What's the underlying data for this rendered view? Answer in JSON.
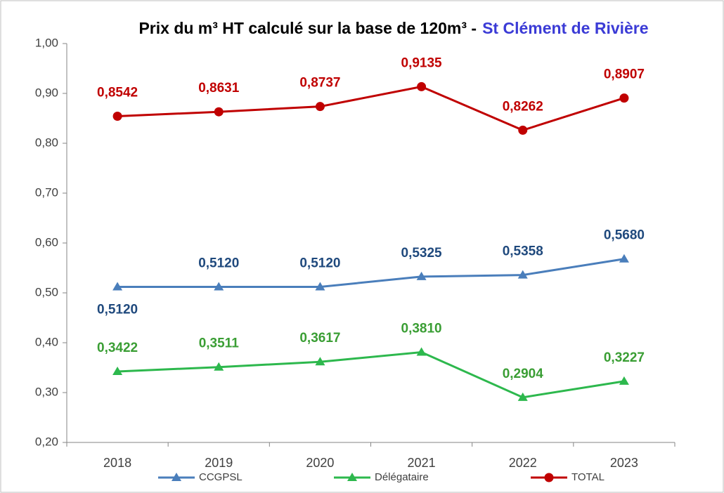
{
  "chart_data": {
    "type": "line",
    "title": "Prix du m³ HT calculé sur la base de 120m³ -",
    "title_highlight": "St Clément de Rivière",
    "categories": [
      "2018",
      "2019",
      "2020",
      "2021",
      "2022",
      "2023"
    ],
    "series": [
      {
        "name": "CCGPSL",
        "color": "#4a7ebb",
        "label_color": "#1f497d",
        "marker": "triangle",
        "values": [
          0.512,
          0.512,
          0.512,
          0.5325,
          0.5358,
          0.568
        ],
        "value_labels": [
          "0,5120",
          "0,5120",
          "0,5120",
          "0,5325",
          "0,5358",
          "0,5680"
        ]
      },
      {
        "name": "Délégataire",
        "color": "#2db84d",
        "label_color": "#3a9e34",
        "marker": "triangle",
        "values": [
          0.3422,
          0.3511,
          0.3617,
          0.381,
          0.2904,
          0.3227
        ],
        "value_labels": [
          "0,3422",
          "0,3511",
          "0,3617",
          "0,3810",
          "0,2904",
          "0,3227"
        ]
      },
      {
        "name": "TOTAL",
        "color": "#c00000",
        "label_color": "#c00000",
        "marker": "circle",
        "values": [
          0.8542,
          0.8631,
          0.8737,
          0.9135,
          0.8262,
          0.8907
        ],
        "value_labels": [
          "0,8542",
          "0,8631",
          "0,8737",
          "0,9135",
          "0,8262",
          "0,8907"
        ]
      }
    ],
    "ylim": [
      0.2,
      1.0
    ],
    "yticks": [
      {
        "value": 0.2,
        "label": "0,20"
      },
      {
        "value": 0.3,
        "label": "0,30"
      },
      {
        "value": 0.4,
        "label": "0,40"
      },
      {
        "value": 0.5,
        "label": "0,50"
      },
      {
        "value": 0.6,
        "label": "0,60"
      },
      {
        "value": 0.7,
        "label": "0,70"
      },
      {
        "value": 0.8,
        "label": "0,80"
      },
      {
        "value": 0.9,
        "label": "0,90"
      },
      {
        "value": 1.0,
        "label": "1,00"
      }
    ],
    "grid": false,
    "legend": "bottom"
  }
}
